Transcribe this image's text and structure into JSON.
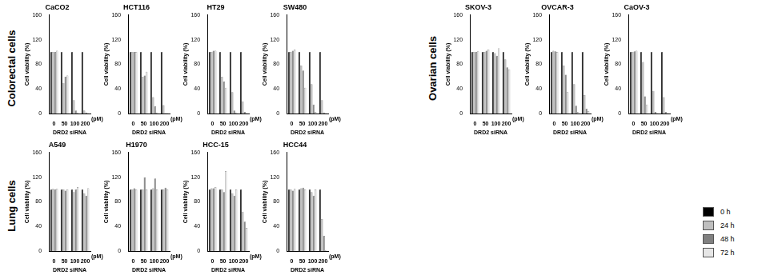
{
  "chart_data": [
    {
      "type": "bar",
      "group": "Colorectal cells",
      "title": "CaCO2",
      "x_label": "DRD2 siRNA",
      "x_unit": "(pM)",
      "y_label": "Cell viability (%)",
      "categories": [
        "0",
        "50",
        "100",
        "200"
      ],
      "ylim": [
        0,
        160
      ],
      "yticks": [
        0,
        40,
        80,
        120,
        160
      ],
      "grid": false,
      "series": [
        {
          "name": "0 h",
          "color": "#000000",
          "values": [
            100,
            100,
            100,
            100
          ]
        },
        {
          "name": "24 h",
          "color": "#bfbfbf",
          "values": [
            100,
            50,
            22,
            5
          ]
        },
        {
          "name": "48 h",
          "color": "#808080",
          "values": [
            100,
            60,
            5,
            2
          ]
        },
        {
          "name": "72 h",
          "color": "#e6e6e6",
          "values": [
            102,
            62,
            2,
            1
          ]
        }
      ]
    },
    {
      "type": "bar",
      "group": "Colorectal cells",
      "title": "HCT116",
      "x_label": "DRD2 siRNA",
      "x_unit": "(pM)",
      "y_label": "Cell viability (%)",
      "categories": [
        "0",
        "50",
        "100",
        "200"
      ],
      "ylim": [
        0,
        160
      ],
      "yticks": [
        0,
        40,
        80,
        120,
        160
      ],
      "grid": false,
      "series": [
        {
          "name": "0 h",
          "color": "#000000",
          "values": [
            100,
            100,
            100,
            100
          ]
        },
        {
          "name": "24 h",
          "color": "#bfbfbf",
          "values": [
            100,
            60,
            27,
            14
          ]
        },
        {
          "name": "48 h",
          "color": "#808080",
          "values": [
            100,
            62,
            12,
            1
          ]
        },
        {
          "name": "72 h",
          "color": "#e6e6e6",
          "values": [
            100,
            68,
            2,
            1
          ]
        }
      ]
    },
    {
      "type": "bar",
      "group": "Colorectal cells",
      "title": "HT29",
      "x_label": "DRD2 siRNA",
      "x_unit": "(pM)",
      "y_label": "Cell viability (%)",
      "categories": [
        "0",
        "50",
        "100",
        "200"
      ],
      "ylim": [
        0,
        160
      ],
      "yticks": [
        0,
        40,
        80,
        120,
        160
      ],
      "grid": false,
      "series": [
        {
          "name": "0 h",
          "color": "#000000",
          "values": [
            100,
            100,
            100,
            100
          ]
        },
        {
          "name": "24 h",
          "color": "#bfbfbf",
          "values": [
            100,
            60,
            35,
            20
          ]
        },
        {
          "name": "48 h",
          "color": "#808080",
          "values": [
            102,
            52,
            5,
            3
          ]
        },
        {
          "name": "72 h",
          "color": "#e6e6e6",
          "values": [
            102,
            42,
            2,
            1
          ]
        }
      ]
    },
    {
      "type": "bar",
      "group": "Colorectal cells",
      "title": "SW480",
      "x_label": "DRD2 siRNA",
      "x_unit": "(pM)",
      "y_label": "Cell viability (%)",
      "categories": [
        "0",
        "50",
        "100",
        "200"
      ],
      "ylim": [
        0,
        160
      ],
      "yticks": [
        0,
        40,
        80,
        120,
        160
      ],
      "grid": false,
      "series": [
        {
          "name": "0 h",
          "color": "#000000",
          "values": [
            100,
            100,
            100,
            100
          ]
        },
        {
          "name": "24 h",
          "color": "#bfbfbf",
          "values": [
            100,
            78,
            48,
            22
          ]
        },
        {
          "name": "48 h",
          "color": "#808080",
          "values": [
            102,
            70,
            15,
            2
          ]
        },
        {
          "name": "72 h",
          "color": "#e6e6e6",
          "values": [
            104,
            42,
            3,
            1
          ]
        }
      ]
    },
    {
      "type": "bar",
      "group": "Ovarian cells",
      "title": "SKOV-3",
      "x_label": "DRD2 siRNA",
      "x_unit": "(pM)",
      "y_label": "Cell viability (%)",
      "categories": [
        "0",
        "50",
        "100",
        "200"
      ],
      "ylim": [
        0,
        160
      ],
      "yticks": [
        0,
        40,
        80,
        120,
        160
      ],
      "grid": false,
      "series": [
        {
          "name": "0 h",
          "color": "#000000",
          "values": [
            100,
            100,
            100,
            100
          ]
        },
        {
          "name": "24 h",
          "color": "#bfbfbf",
          "values": [
            100,
            100,
            98,
            88
          ]
        },
        {
          "name": "48 h",
          "color": "#808080",
          "values": [
            100,
            102,
            94,
            75
          ]
        },
        {
          "name": "72 h",
          "color": "#e6e6e6",
          "values": [
            101,
            104,
            106,
            72
          ]
        }
      ]
    },
    {
      "type": "bar",
      "group": "Ovarian cells",
      "title": "OVCAR-3",
      "x_label": "DRD2 siRNA",
      "x_unit": "(pM)",
      "y_label": "Cell viability (%)",
      "categories": [
        "0",
        "50",
        "100",
        "200"
      ],
      "ylim": [
        0,
        160
      ],
      "yticks": [
        0,
        40,
        80,
        120,
        160
      ],
      "grid": false,
      "series": [
        {
          "name": "0 h",
          "color": "#000000",
          "values": [
            100,
            100,
            100,
            100
          ]
        },
        {
          "name": "24 h",
          "color": "#bfbfbf",
          "values": [
            102,
            78,
            48,
            30
          ]
        },
        {
          "name": "48 h",
          "color": "#808080",
          "values": [
            101,
            63,
            13,
            8
          ]
        },
        {
          "name": "72 h",
          "color": "#e6e6e6",
          "values": [
            100,
            35,
            3,
            4
          ]
        }
      ]
    },
    {
      "type": "bar",
      "group": "Ovarian cells",
      "title": "CaOV-3",
      "x_label": "DRD2 siRNA",
      "x_unit": "(pM)",
      "y_label": "Cell viability (%)",
      "categories": [
        "0",
        "50",
        "100",
        "200"
      ],
      "ylim": [
        0,
        160
      ],
      "yticks": [
        0,
        40,
        80,
        120,
        160
      ],
      "grid": false,
      "series": [
        {
          "name": "0 h",
          "color": "#000000",
          "values": [
            100,
            100,
            100,
            100
          ]
        },
        {
          "name": "24 h",
          "color": "#bfbfbf",
          "values": [
            100,
            84,
            37,
            27
          ]
        },
        {
          "name": "48 h",
          "color": "#808080",
          "values": [
            101,
            28,
            3,
            3
          ]
        },
        {
          "name": "72 h",
          "color": "#e6e6e6",
          "values": [
            102,
            15,
            1,
            1
          ]
        }
      ]
    },
    {
      "type": "bar",
      "group": "Lung cells",
      "title": "A549",
      "x_label": "DRD2 siRNA",
      "x_unit": "(pM)",
      "y_label": "Cell viability (%)",
      "categories": [
        "0",
        "50",
        "100",
        "200"
      ],
      "ylim": [
        0,
        160
      ],
      "yticks": [
        0,
        40,
        80,
        120,
        160
      ],
      "grid": false,
      "series": [
        {
          "name": "0 h",
          "color": "#000000",
          "values": [
            100,
            100,
            100,
            100
          ]
        },
        {
          "name": "24 h",
          "color": "#bfbfbf",
          "values": [
            101,
            100,
            96,
            94
          ]
        },
        {
          "name": "48 h",
          "color": "#808080",
          "values": [
            100,
            98,
            100,
            90
          ]
        },
        {
          "name": "72 h",
          "color": "#e6e6e6",
          "values": [
            101,
            100,
            104,
            102
          ]
        }
      ]
    },
    {
      "type": "bar",
      "group": "Lung cells",
      "title": "H1970",
      "x_label": "DRD2 siRNA",
      "x_unit": "(pM)",
      "y_label": "Cell viability (%)",
      "categories": [
        "0",
        "50",
        "100",
        "200"
      ],
      "ylim": [
        0,
        160
      ],
      "yticks": [
        0,
        40,
        80,
        120,
        160
      ],
      "grid": false,
      "series": [
        {
          "name": "0 h",
          "color": "#000000",
          "values": [
            100,
            100,
            100,
            100
          ]
        },
        {
          "name": "24 h",
          "color": "#bfbfbf",
          "values": [
            100,
            100,
            102,
            100
          ]
        },
        {
          "name": "48 h",
          "color": "#808080",
          "values": [
            102,
            120,
            118,
            103
          ]
        },
        {
          "name": "72 h",
          "color": "#e6e6e6",
          "values": [
            100,
            100,
            100,
            100
          ]
        }
      ]
    },
    {
      "type": "bar",
      "group": "Lung cells",
      "title": "HCC-15",
      "x_label": "DRD2 siRNA",
      "x_unit": "(pM)",
      "y_label": "Cell viability (%)",
      "categories": [
        "0",
        "50",
        "100",
        "200"
      ],
      "ylim": [
        0,
        160
      ],
      "yticks": [
        0,
        40,
        80,
        120,
        160
      ],
      "grid": false,
      "series": [
        {
          "name": "0 h",
          "color": "#000000",
          "values": [
            100,
            100,
            100,
            100
          ]
        },
        {
          "name": "24 h",
          "color": "#bfbfbf",
          "values": [
            102,
            100,
            94,
            64
          ]
        },
        {
          "name": "48 h",
          "color": "#808080",
          "values": [
            102,
            96,
            90,
            48
          ]
        },
        {
          "name": "72 h",
          "color": "#e6e6e6",
          "values": [
            104,
            130,
            100,
            38
          ]
        }
      ]
    },
    {
      "type": "bar",
      "group": "Lung cells",
      "title": "HCC44",
      "x_label": "DRD2 siRNA",
      "x_unit": "(pM)",
      "y_label": "Cell viability (%)",
      "categories": [
        "0",
        "50",
        "100",
        "200"
      ],
      "ylim": [
        0,
        160
      ],
      "yticks": [
        0,
        40,
        80,
        120,
        160
      ],
      "grid": false,
      "series": [
        {
          "name": "0 h",
          "color": "#000000",
          "values": [
            100,
            100,
            100,
            100
          ]
        },
        {
          "name": "24 h",
          "color": "#bfbfbf",
          "values": [
            100,
            102,
            96,
            52
          ]
        },
        {
          "name": "48 h",
          "color": "#808080",
          "values": [
            98,
            103,
            90,
            25
          ]
        },
        {
          "name": "72 h",
          "color": "#e6e6e6",
          "values": [
            101,
            100,
            100,
            2
          ]
        }
      ]
    }
  ]
}
